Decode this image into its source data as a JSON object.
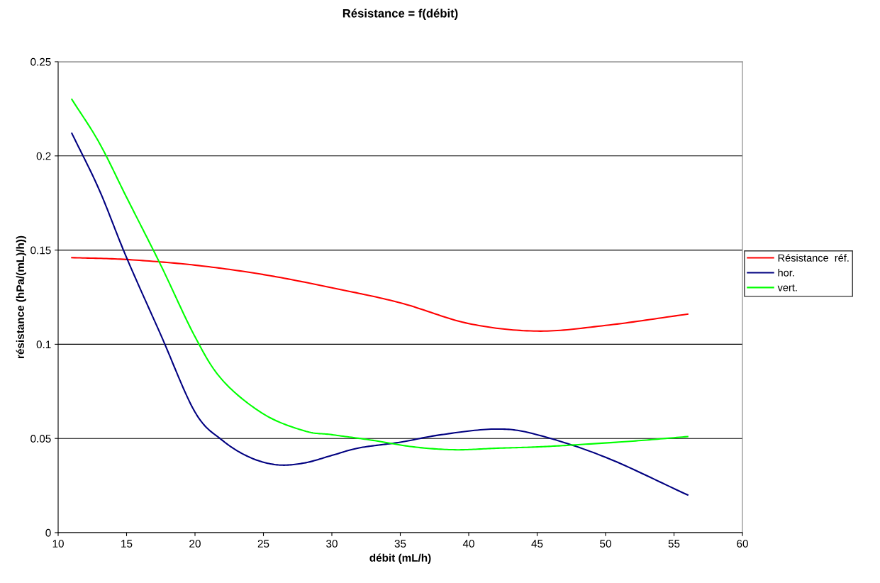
{
  "chart_data": {
    "type": "line",
    "title": "Résistance = f(débit)",
    "xlabel": "débit (mL/h)",
    "ylabel": "résistance (hPa/(mL)/h))",
    "xlim": [
      10,
      60
    ],
    "xticks": [
      10,
      15,
      20,
      25,
      30,
      35,
      40,
      45,
      50,
      55,
      60
    ],
    "ylim": [
      0,
      0.25
    ],
    "yticks": [
      0,
      0.05,
      0.1,
      0.15,
      0.2,
      0.25
    ],
    "grid": "y",
    "legend": "right",
    "marker": "none",
    "line_style": "solid",
    "series": [
      {
        "name": "Résistance  réf.",
        "color": "#ff0000",
        "x": [
          11,
          15,
          20,
          25,
          30,
          35,
          40,
          45,
          50,
          56
        ],
        "values": [
          0.146,
          0.145,
          0.142,
          0.137,
          0.13,
          0.122,
          0.111,
          0.107,
          0.11,
          0.116
        ]
      },
      {
        "name": "hor.",
        "color": "#000080",
        "x": [
          11,
          13,
          15,
          17.5,
          20,
          22,
          24,
          26,
          28,
          30,
          32,
          35,
          38,
          42,
          45,
          50,
          56
        ],
        "values": [
          0.212,
          0.182,
          0.146,
          0.105,
          0.064,
          0.049,
          0.04,
          0.036,
          0.037,
          0.041,
          0.045,
          0.048,
          0.052,
          0.055,
          0.052,
          0.04,
          0.02
        ]
      },
      {
        "name": "vert.",
        "color": "#00ff00",
        "x": [
          11,
          13,
          15,
          17.5,
          20,
          22,
          25,
          28,
          30,
          33,
          36,
          39,
          42,
          45,
          48,
          52,
          56
        ],
        "values": [
          0.23,
          0.207,
          0.178,
          0.142,
          0.104,
          0.081,
          0.063,
          0.054,
          0.052,
          0.049,
          0.0455,
          0.044,
          0.0448,
          0.0455,
          0.0467,
          0.0486,
          0.051
        ]
      }
    ]
  }
}
